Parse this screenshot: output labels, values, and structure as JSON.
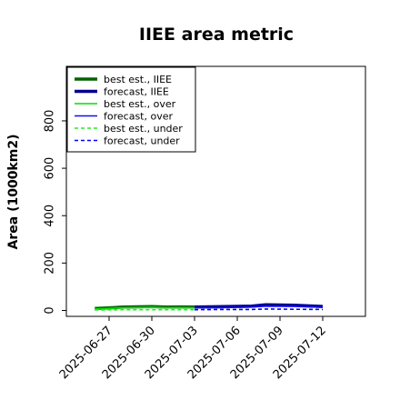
{
  "chart_data": {
    "type": "line",
    "title": "IIEE area metric",
    "ylabel": "Area (1000km2)",
    "xlabel": "",
    "ylim": [
      -25,
      1030
    ],
    "xlim": [
      "2025-06-24",
      "2025-07-15"
    ],
    "yticks": [
      0,
      200,
      400,
      600,
      800
    ],
    "xticks": [
      "2025-06-27",
      "2025-06-30",
      "2025-07-03",
      "2025-07-06",
      "2025-07-09",
      "2025-07-12"
    ],
    "highlight_xtick": "2025-07-03",
    "highlight_color": "#228b22",
    "legend_position": "upper-left",
    "grid": false,
    "series": [
      {
        "name": "best est., IIEE",
        "color": "#006400",
        "style": "solid",
        "width": "thick",
        "x": [
          "2025-06-26",
          "2025-06-28",
          "2025-06-30",
          "2025-07-01",
          "2025-07-02",
          "2025-07-03"
        ],
        "values": [
          8,
          14,
          16,
          14,
          15,
          14
        ]
      },
      {
        "name": "forecast, IIEE",
        "color": "#00008b",
        "style": "solid",
        "width": "thick",
        "x": [
          "2025-07-03",
          "2025-07-05",
          "2025-07-07",
          "2025-07-08",
          "2025-07-10",
          "2025-07-12"
        ],
        "values": [
          14,
          16,
          18,
          24,
          22,
          17
        ]
      },
      {
        "name": "best est., over",
        "color": "#00dd00",
        "style": "solid",
        "width": "thin",
        "x": [
          "2025-06-26",
          "2025-06-28",
          "2025-06-30",
          "2025-07-01",
          "2025-07-02",
          "2025-07-03"
        ],
        "values": [
          6,
          11,
          13,
          11,
          12,
          11
        ]
      },
      {
        "name": "forecast, over",
        "color": "#1010ee",
        "style": "solid",
        "width": "thin",
        "x": [
          "2025-07-03",
          "2025-07-05",
          "2025-07-07",
          "2025-07-08",
          "2025-07-10",
          "2025-07-12"
        ],
        "values": [
          11,
          12,
          14,
          18,
          17,
          13
        ]
      },
      {
        "name": "best est., under",
        "color": "#22ee22",
        "style": "dashed",
        "width": "thin",
        "x": [
          "2025-06-26",
          "2025-06-28",
          "2025-06-30",
          "2025-07-01",
          "2025-07-02",
          "2025-07-03"
        ],
        "values": [
          2,
          3,
          3,
          3,
          3,
          3
        ]
      },
      {
        "name": "forecast, under",
        "color": "#0000ff",
        "style": "dashed",
        "width": "thin",
        "x": [
          "2025-07-03",
          "2025-07-05",
          "2025-07-07",
          "2025-07-08",
          "2025-07-10",
          "2025-07-12"
        ],
        "values": [
          3,
          4,
          4,
          6,
          5,
          4
        ]
      }
    ]
  }
}
